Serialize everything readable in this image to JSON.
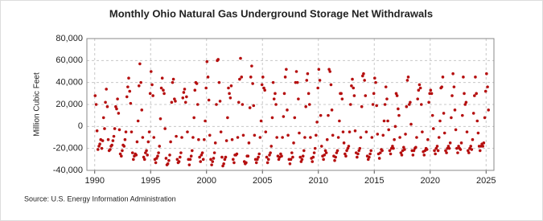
{
  "chart_data": {
    "type": "scatter",
    "title": "Monthly Ohio Natural Gas Underground Storage Net Withdrawals",
    "y_label": "Million Cubic Feet",
    "source": "Source: U.S. Energy Information Administration",
    "color": "#b50f0f",
    "grid": true,
    "xlim": [
      1989.3,
      2025.7
    ],
    "ylim": [
      -40000,
      80000
    ],
    "xticks": [
      1990,
      1995,
      2000,
      2005,
      2010,
      2015,
      2020,
      2025
    ],
    "yticks": [
      {
        "value": -40000,
        "label": "-40,000"
      },
      {
        "value": -20000,
        "label": "-20,000"
      },
      0,
      {
        "value": 20000,
        "label": "20,000"
      },
      {
        "value": 40000,
        "label": "40,000"
      },
      {
        "value": 60000,
        "label": "60,000"
      },
      {
        "value": 80000,
        "label": "80,000"
      }
    ],
    "x": [
      1990.04,
      1990.13,
      1990.21,
      1990.29,
      1990.38,
      1990.46,
      1990.54,
      1990.63,
      1990.71,
      1990.79,
      1990.88,
      1990.96,
      1991.04,
      1991.13,
      1991.21,
      1991.29,
      1991.38,
      1991.46,
      1991.54,
      1991.63,
      1991.71,
      1991.79,
      1991.88,
      1991.96,
      1992.04,
      1992.13,
      1992.21,
      1992.29,
      1992.38,
      1992.46,
      1992.54,
      1992.63,
      1992.71,
      1992.79,
      1992.88,
      1992.96,
      1993.04,
      1993.13,
      1993.21,
      1993.29,
      1993.38,
      1993.46,
      1993.54,
      1993.63,
      1993.71,
      1993.79,
      1993.88,
      1993.96,
      1994.04,
      1994.13,
      1994.21,
      1994.29,
      1994.38,
      1994.46,
      1994.54,
      1994.63,
      1994.71,
      1994.79,
      1994.88,
      1994.96,
      1995.04,
      1995.13,
      1995.21,
      1995.29,
      1995.38,
      1995.46,
      1995.54,
      1995.63,
      1995.71,
      1995.79,
      1995.88,
      1995.96,
      1996.04,
      1996.13,
      1996.21,
      1996.29,
      1996.38,
      1996.46,
      1996.54,
      1996.63,
      1996.71,
      1996.79,
      1996.88,
      1996.96,
      1997.04,
      1997.13,
      1997.21,
      1997.29,
      1997.38,
      1997.46,
      1997.54,
      1997.63,
      1997.71,
      1997.79,
      1997.88,
      1997.96,
      1998.04,
      1998.13,
      1998.21,
      1998.29,
      1998.38,
      1998.46,
      1998.54,
      1998.63,
      1998.71,
      1998.79,
      1998.88,
      1998.96,
      1999.04,
      1999.13,
      1999.21,
      1999.29,
      1999.38,
      1999.46,
      1999.54,
      1999.63,
      1999.71,
      1999.79,
      1999.88,
      1999.96,
      2000.04,
      2000.13,
      2000.21,
      2000.29,
      2000.38,
      2000.46,
      2000.54,
      2000.63,
      2000.71,
      2000.79,
      2000.88,
      2000.96,
      2001.04,
      2001.13,
      2001.21,
      2001.29,
      2001.38,
      2001.46,
      2001.54,
      2001.63,
      2001.71,
      2001.79,
      2001.88,
      2001.96,
      2002.04,
      2002.13,
      2002.21,
      2002.29,
      2002.38,
      2002.46,
      2002.54,
      2002.63,
      2002.71,
      2002.79,
      2002.88,
      2002.96,
      2003.04,
      2003.13,
      2003.21,
      2003.29,
      2003.38,
      2003.46,
      2003.54,
      2003.63,
      2003.71,
      2003.79,
      2003.88,
      2003.96,
      2004.04,
      2004.13,
      2004.21,
      2004.29,
      2004.38,
      2004.46,
      2004.54,
      2004.63,
      2004.71,
      2004.79,
      2004.88,
      2004.96,
      2005.04,
      2005.13,
      2005.21,
      2005.29,
      2005.38,
      2005.46,
      2005.54,
      2005.63,
      2005.71,
      2005.79,
      2005.88,
      2005.96,
      2006.04,
      2006.13,
      2006.21,
      2006.29,
      2006.38,
      2006.46,
      2006.54,
      2006.63,
      2006.71,
      2006.79,
      2006.88,
      2006.96,
      2007.04,
      2007.13,
      2007.21,
      2007.29,
      2007.38,
      2007.46,
      2007.54,
      2007.63,
      2007.71,
      2007.79,
      2007.88,
      2007.96,
      2008.04,
      2008.13,
      2008.21,
      2008.29,
      2008.38,
      2008.46,
      2008.54,
      2008.63,
      2008.71,
      2008.79,
      2008.88,
      2008.96,
      2009.04,
      2009.13,
      2009.21,
      2009.29,
      2009.38,
      2009.46,
      2009.54,
      2009.63,
      2009.71,
      2009.79,
      2009.88,
      2009.96,
      2010.04,
      2010.13,
      2010.21,
      2010.29,
      2010.38,
      2010.46,
      2010.54,
      2010.63,
      2010.71,
      2010.79,
      2010.88,
      2010.96,
      2011.04,
      2011.13,
      2011.21,
      2011.29,
      2011.38,
      2011.46,
      2011.54,
      2011.63,
      2011.71,
      2011.79,
      2011.88,
      2011.96,
      2012.04,
      2012.13,
      2012.21,
      2012.29,
      2012.38,
      2012.46,
      2012.54,
      2012.63,
      2012.71,
      2012.79,
      2012.88,
      2012.96,
      2013.04,
      2013.13,
      2013.21,
      2013.29,
      2013.38,
      2013.46,
      2013.54,
      2013.63,
      2013.71,
      2013.79,
      2013.88,
      2013.96,
      2014.04,
      2014.13,
      2014.21,
      2014.29,
      2014.38,
      2014.46,
      2014.54,
      2014.63,
      2014.71,
      2014.79,
      2014.88,
      2014.96,
      2015.04,
      2015.13,
      2015.21,
      2015.29,
      2015.38,
      2015.46,
      2015.54,
      2015.63,
      2015.71,
      2015.79,
      2015.88,
      2015.96,
      2016.04,
      2016.13,
      2016.21,
      2016.29,
      2016.38,
      2016.46,
      2016.54,
      2016.63,
      2016.71,
      2016.79,
      2016.88,
      2016.96,
      2017.04,
      2017.13,
      2017.21,
      2017.29,
      2017.38,
      2017.46,
      2017.54,
      2017.63,
      2017.71,
      2017.79,
      2017.88,
      2017.96,
      2018.04,
      2018.13,
      2018.21,
      2018.29,
      2018.38,
      2018.46,
      2018.54,
      2018.63,
      2018.71,
      2018.79,
      2018.88,
      2018.96,
      2019.04,
      2019.13,
      2019.21,
      2019.29,
      2019.38,
      2019.46,
      2019.54,
      2019.63,
      2019.71,
      2019.79,
      2019.88,
      2019.96,
      2020.04,
      2020.13,
      2020.21,
      2020.29,
      2020.38,
      2020.46,
      2020.54,
      2020.63,
      2020.71,
      2020.79,
      2020.88,
      2020.96,
      2021.04,
      2021.13,
      2021.21,
      2021.29,
      2021.38,
      2021.46,
      2021.54,
      2021.63,
      2021.71,
      2021.79,
      2021.88,
      2021.96,
      2022.04,
      2022.13,
      2022.21,
      2022.29,
      2022.38,
      2022.46,
      2022.54,
      2022.63,
      2022.71,
      2022.79,
      2022.88,
      2022.96,
      2023.04,
      2023.13,
      2023.21,
      2023.29,
      2023.38,
      2023.46,
      2023.54,
      2023.63,
      2023.71,
      2023.79,
      2023.88,
      2023.96,
      2024.04,
      2024.13,
      2024.21,
      2024.29,
      2024.38,
      2024.46,
      2024.54,
      2024.63,
      2024.71,
      2024.79,
      2024.88,
      2024.96,
      2025.04,
      2025.13,
      2025.21
    ],
    "values": [
      28000,
      20000,
      -4000,
      -21000,
      -18000,
      -16000,
      -12000,
      -20000,
      -13000,
      8000,
      -2000,
      22000,
      34000,
      18000,
      -12000,
      -22000,
      -21000,
      -18000,
      -17000,
      -13000,
      -9000,
      -2000,
      18000,
      16000,
      25000,
      12000,
      -3000,
      -25000,
      -27000,
      -22000,
      -17000,
      -18000,
      -12000,
      -5000,
      27000,
      36000,
      44000,
      32000,
      21000,
      -5000,
      -24000,
      -30000,
      -27000,
      -25000,
      -26000,
      -14000,
      5000,
      37000,
      57000,
      40000,
      15000,
      -10000,
      -28000,
      -30000,
      -24000,
      -22000,
      -26000,
      -14000,
      -5000,
      30000,
      50000,
      38000,
      28000,
      -10000,
      -30000,
      -33000,
      -29000,
      -27000,
      -24000,
      -18000,
      7000,
      35000,
      44000,
      33000,
      30000,
      -2000,
      -29000,
      -35000,
      -34000,
      -31000,
      -26000,
      -14000,
      22000,
      40000,
      43000,
      25000,
      23000,
      -9000,
      -30000,
      -33000,
      -32000,
      -28000,
      -24000,
      -10000,
      26000,
      31000,
      34000,
      22000,
      27000,
      -5000,
      -30000,
      -35000,
      -30000,
      -27000,
      -22000,
      -10000,
      8000,
      33000,
      40000,
      39000,
      20000,
      -12000,
      -28000,
      -32000,
      -26000,
      -24000,
      -30000,
      -12000,
      5000,
      35000,
      59000,
      45000,
      24000,
      -8000,
      -30000,
      -35000,
      -32000,
      -29000,
      -24000,
      -15000,
      20000,
      60000,
      61000,
      40000,
      23000,
      -5000,
      -28000,
      -36000,
      -34000,
      -30000,
      -28000,
      -13000,
      8000,
      35000,
      30000,
      26000,
      37000,
      -12000,
      -30000,
      -33000,
      -26000,
      -26000,
      -25000,
      -10000,
      22000,
      43000,
      62000,
      45000,
      20000,
      -8000,
      -32000,
      -34000,
      -33000,
      -27000,
      -27000,
      -15000,
      17000,
      45000,
      55000,
      39000,
      19000,
      -8000,
      -30000,
      -33000,
      -30000,
      -28000,
      -25000,
      -10000,
      5000,
      38000,
      45000,
      35000,
      33000,
      -5000,
      -28000,
      -33000,
      -30000,
      -26000,
      -24000,
      -18000,
      8000,
      40000,
      25000,
      30000,
      20000,
      -10000,
      -27000,
      -30000,
      -28000,
      -25000,
      -27000,
      -10000,
      9000,
      30000,
      45000,
      52000,
      15000,
      -8000,
      -30000,
      -34000,
      -30000,
      -24000,
      -28000,
      -15000,
      8000,
      40000,
      50000,
      40000,
      25000,
      -6000,
      -28000,
      -32000,
      -30000,
      -27000,
      -22000,
      -10000,
      18000,
      42000,
      48000,
      30000,
      20000,
      -10000,
      -29000,
      -32000,
      -28000,
      -24000,
      -20000,
      -8000,
      4000,
      35000,
      52000,
      42000,
      10000,
      -18000,
      -27000,
      -30000,
      -26000,
      -22000,
      -24000,
      -12000,
      10000,
      52000,
      50000,
      38000,
      15000,
      -8000,
      -27000,
      -31000,
      -28000,
      -24000,
      -22000,
      -10000,
      5000,
      30000,
      30000,
      25000,
      -5000,
      -15000,
      -25000,
      -27000,
      -22000,
      -20000,
      -18000,
      -5000,
      20000,
      37000,
      43000,
      35000,
      28000,
      -4000,
      -24000,
      -28000,
      -25000,
      -22000,
      -20000,
      -10000,
      18000,
      46000,
      48000,
      42000,
      28000,
      -5000,
      -27000,
      -30000,
      -28000,
      -25000,
      -22000,
      -10000,
      20000,
      30000,
      44000,
      40000,
      19000,
      -7000,
      -25000,
      -29000,
      -24000,
      -21000,
      -22000,
      -8000,
      5000,
      20000,
      36000,
      25000,
      5000,
      -3000,
      -22000,
      -25000,
      -20000,
      -18000,
      -20000,
      -12000,
      0,
      30000,
      28000,
      16000,
      10000,
      -10000,
      -24000,
      -26000,
      -22000,
      -19000,
      -21000,
      -7000,
      18000,
      42000,
      45000,
      20000,
      22000,
      2000,
      -22000,
      -26000,
      -22000,
      -20000,
      -19000,
      -10000,
      25000,
      33000,
      38000,
      35000,
      20000,
      -5000,
      -23000,
      -26000,
      -22000,
      -20000,
      -21000,
      -12000,
      22000,
      30000,
      33000,
      30000,
      10000,
      -2000,
      -22000,
      -25000,
      -20000,
      -18000,
      -22000,
      -10000,
      5000,
      35000,
      36000,
      45000,
      12000,
      -6000,
      -22000,
      -24000,
      -20000,
      -18000,
      -20000,
      -15000,
      8000,
      28000,
      48000,
      36000,
      15000,
      -3000,
      -20000,
      -24000,
      -18000,
      -20000,
      -21000,
      -15000,
      10000,
      45000,
      30000,
      20000,
      22000,
      -5000,
      -22000,
      -24000,
      -20000,
      -18000,
      -21000,
      -12000,
      12000,
      28000,
      45000,
      30000,
      5000,
      -6000,
      -18000,
      -22000,
      -18000,
      -16000,
      -18000,
      -15000,
      8000,
      32000,
      48000,
      36000,
      15000
    ]
  }
}
